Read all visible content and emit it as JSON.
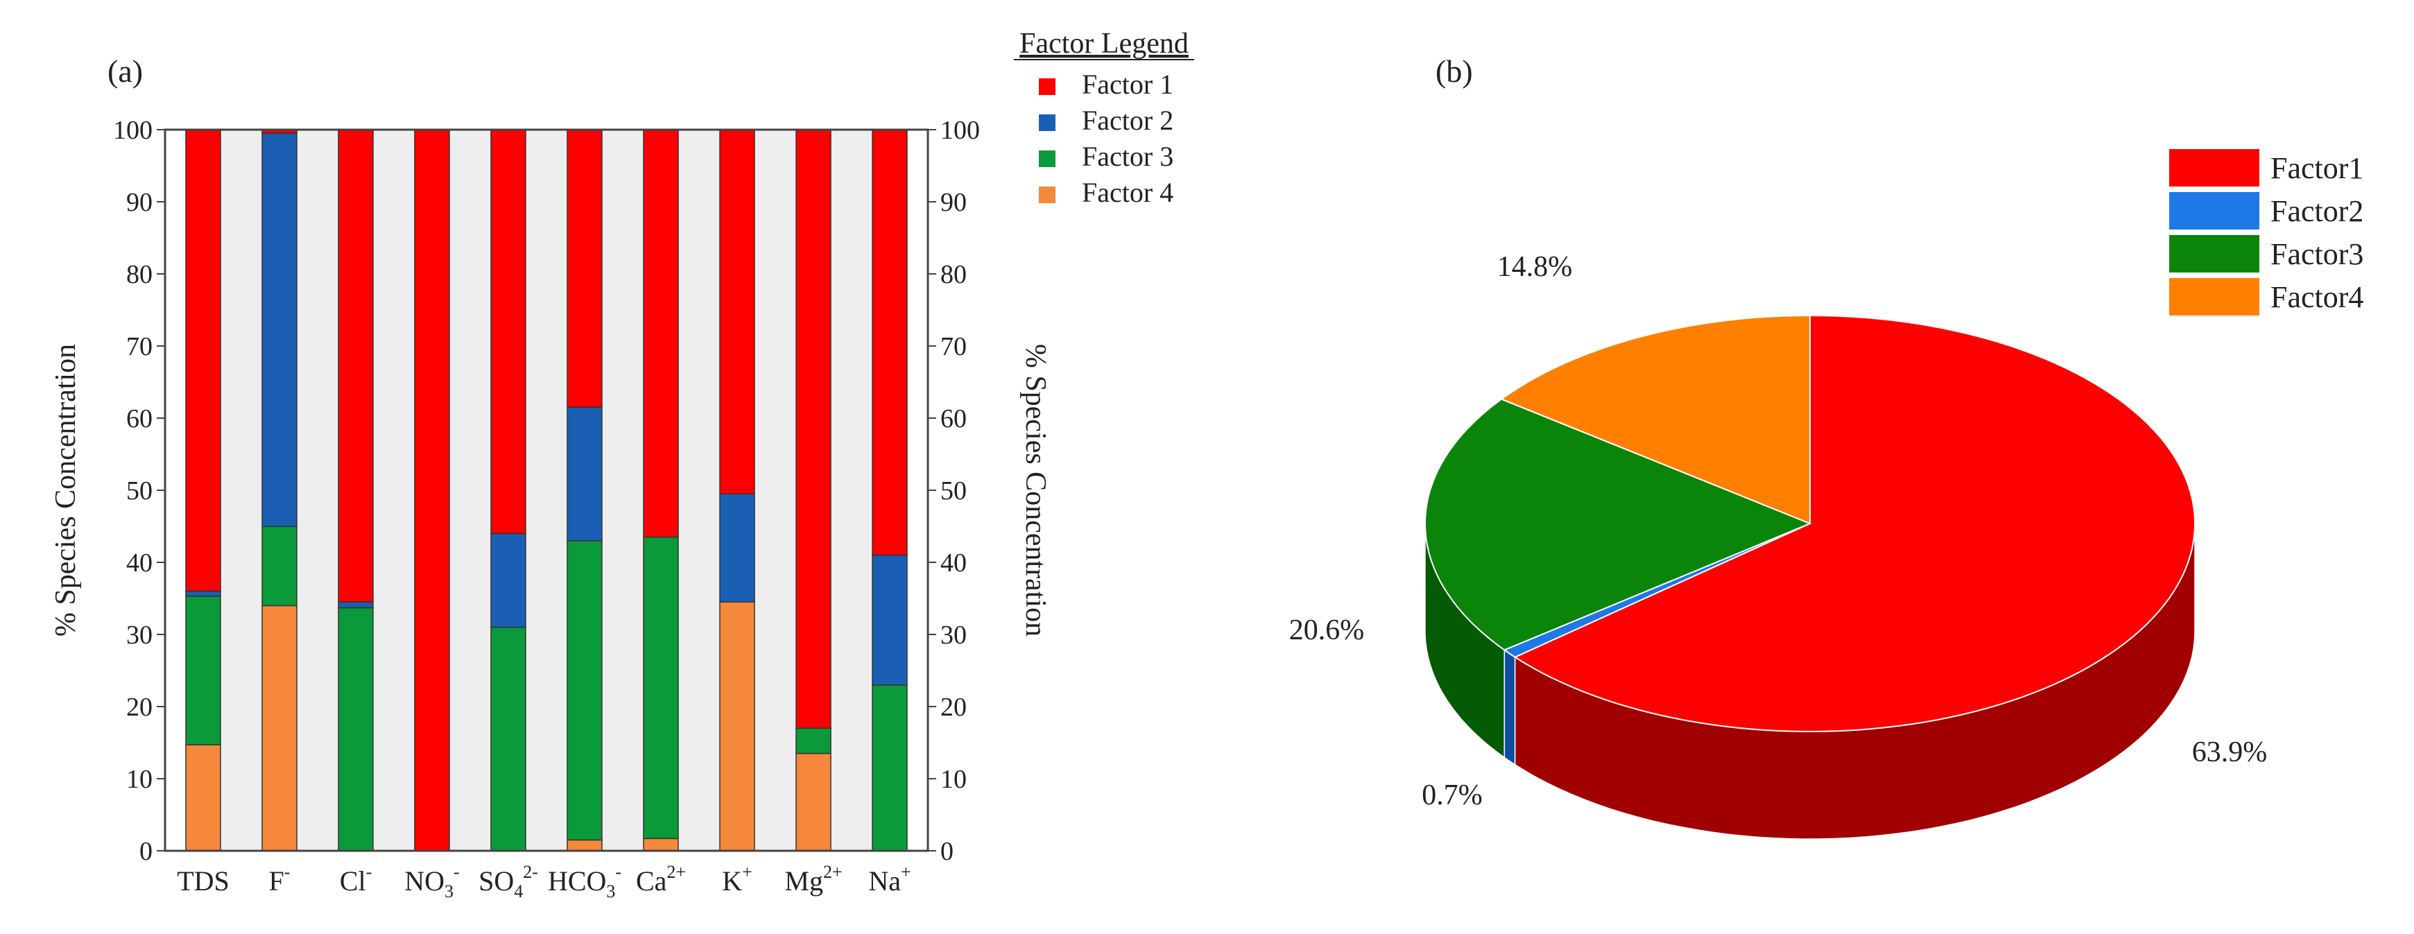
{
  "chart_data": [
    {
      "type": "bar",
      "stacked": true,
      "panel_label": "(a)",
      "title": "",
      "ylabel_left": "% Species Concentration",
      "ylabel_right": "% Species Concentration",
      "ylim": [
        0,
        100
      ],
      "yticks": [
        "0",
        "10",
        "20",
        "30",
        "40",
        "50",
        "60",
        "70",
        "80",
        "90",
        "100"
      ],
      "grid": false,
      "legend_title": "Factor Legend",
      "legend_position": "top-right",
      "categories": [
        {
          "base": "TDS",
          "sup": "",
          "sub": ""
        },
        {
          "base": "F",
          "sup": "-",
          "sub": ""
        },
        {
          "base": "Cl",
          "sup": "-",
          "sub": ""
        },
        {
          "base": "NO",
          "sub": "3",
          "sup": "-"
        },
        {
          "base": "SO",
          "sub": "4",
          "sup": "2-"
        },
        {
          "base": "HCO",
          "sub": "3",
          "sup": "-"
        },
        {
          "base": "Ca",
          "sup": "2+",
          "sub": ""
        },
        {
          "base": "K",
          "sup": "+",
          "sub": ""
        },
        {
          "base": "Mg",
          "sup": "2+",
          "sub": ""
        },
        {
          "base": "Na",
          "sup": "+",
          "sub": ""
        }
      ],
      "series": [
        {
          "name": "Factor 1",
          "color": "#ff0000",
          "values": [
            64,
            0.5,
            65.5,
            100,
            56,
            38.5,
            56.5,
            50.5,
            83,
            59
          ]
        },
        {
          "name": "Factor 2",
          "color": "#1a5fb4",
          "values": [
            0.7,
            54.5,
            0.8,
            0,
            13,
            18.5,
            0,
            15,
            0,
            18
          ]
        },
        {
          "name": "Factor 3",
          "color": "#0a9a3a",
          "values": [
            20.6,
            11,
            33.7,
            0,
            31,
            41.5,
            41.8,
            0,
            3.5,
            23
          ]
        },
        {
          "name": "Factor 4",
          "color": "#f5883a",
          "values": [
            14.7,
            34,
            0,
            0,
            0,
            1.5,
            1.7,
            34.5,
            13.5,
            0
          ]
        }
      ]
    },
    {
      "type": "pie",
      "three_d": true,
      "panel_label": "(b)",
      "title": "",
      "legend_position": "top-right",
      "slices": [
        {
          "name": "Factor1",
          "value": 63.9,
          "label": "63.9%",
          "color": "#ff0000",
          "side": "#a10000"
        },
        {
          "name": "Factor2",
          "value": 0.7,
          "label": "0.7%",
          "color": "#1e78e6",
          "side": "#0e4fa6"
        },
        {
          "name": "Factor3",
          "value": 20.6,
          "label": "20.6%",
          "color": "#0a850a",
          "side": "#055a05"
        },
        {
          "name": "Factor4",
          "value": 14.8,
          "label": "14.8%",
          "color": "#ff8000",
          "side": "#b35a00"
        }
      ]
    }
  ]
}
